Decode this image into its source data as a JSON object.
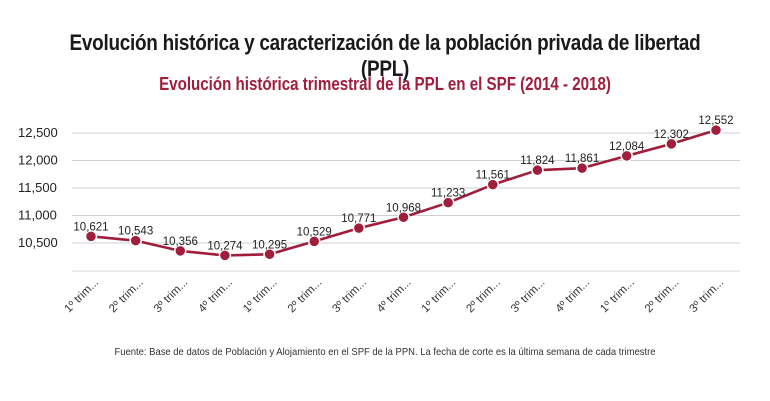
{
  "title": "Evolución histórica y caracterización de la población privada de libertad (PPL)",
  "chart_data": {
    "type": "line",
    "title": "Evolución histórica trimestral de la PPL en el SPF (2014 - 2018)",
    "xlabel": "",
    "ylabel": "",
    "ylim": [
      10000,
      12500
    ],
    "yticks": [
      10500,
      11000,
      11500,
      12000,
      12500
    ],
    "ytick_labels": [
      "10,500",
      "11,000",
      "11,500",
      "12,000",
      "12,500"
    ],
    "grid": true,
    "line_color": "#a01e3c",
    "categories": [
      "1º trim...",
      "2º trim...",
      "3º trim...",
      "4º trim...",
      "1º trim...",
      "2º trim...",
      "3º trim...",
      "4º trim...",
      "1º trim...",
      "2º trim...",
      "3º trim...",
      "4º trim...",
      "1º trim...",
      "2º trim...",
      "3º trim..."
    ],
    "series": [
      {
        "values": [
          10621,
          10543,
          10356,
          10274,
          10295,
          10529,
          10771,
          10968,
          11233,
          11561,
          11824,
          11861,
          12084,
          12302,
          12552
        ],
        "labels": [
          "10,621",
          "10,543",
          "10,356",
          "10,274",
          "10,295",
          "10,529",
          "10,771",
          "10,968",
          "11,233",
          "11,561",
          "11,824",
          "11,861",
          "12,084",
          "12,302",
          "12,552"
        ]
      }
    ]
  },
  "source": "Fuente: Base de datos de Población y Alojamiento en el SPF de la PPN. La fecha de corte es la última semana de cada trimestre"
}
